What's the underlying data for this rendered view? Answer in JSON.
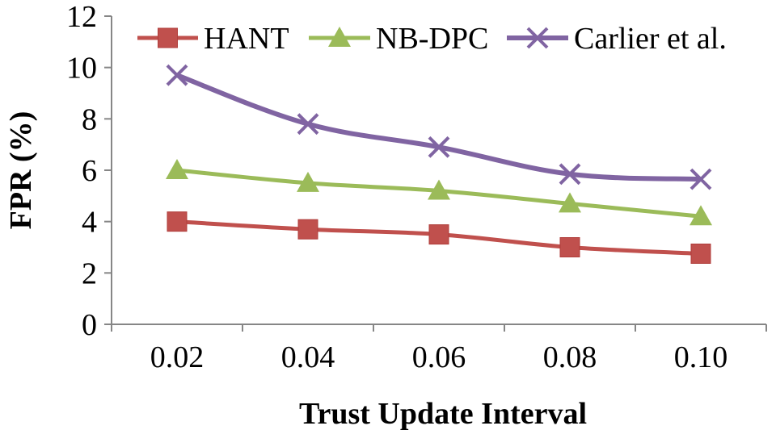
{
  "chart_data": {
    "type": "line",
    "title": "",
    "xlabel": "Trust Update Interval",
    "ylabel": "FPR (%)",
    "categories": [
      "0.02",
      "0.04",
      "0.06",
      "0.08",
      "0.10"
    ],
    "ylim": [
      0,
      12
    ],
    "yticks": [
      0,
      2,
      4,
      6,
      8,
      10,
      12
    ],
    "ytick_labels": [
      "0",
      "2",
      "4",
      "6",
      "8",
      "10",
      "12"
    ],
    "grid": false,
    "legend_position": "top",
    "series": [
      {
        "name": "HANT",
        "values": [
          4.0,
          3.7,
          3.5,
          3.0,
          2.75
        ],
        "color": "#c0504d",
        "marker": "square"
      },
      {
        "name": "NB-DPC",
        "values": [
          6.0,
          5.5,
          5.2,
          4.7,
          4.2
        ],
        "color": "#9bbb59",
        "marker": "triangle"
      },
      {
        "name": "Carlier et al.",
        "values": [
          9.7,
          7.8,
          6.9,
          5.85,
          5.65
        ],
        "color": "#8064a2",
        "marker": "x"
      }
    ]
  }
}
